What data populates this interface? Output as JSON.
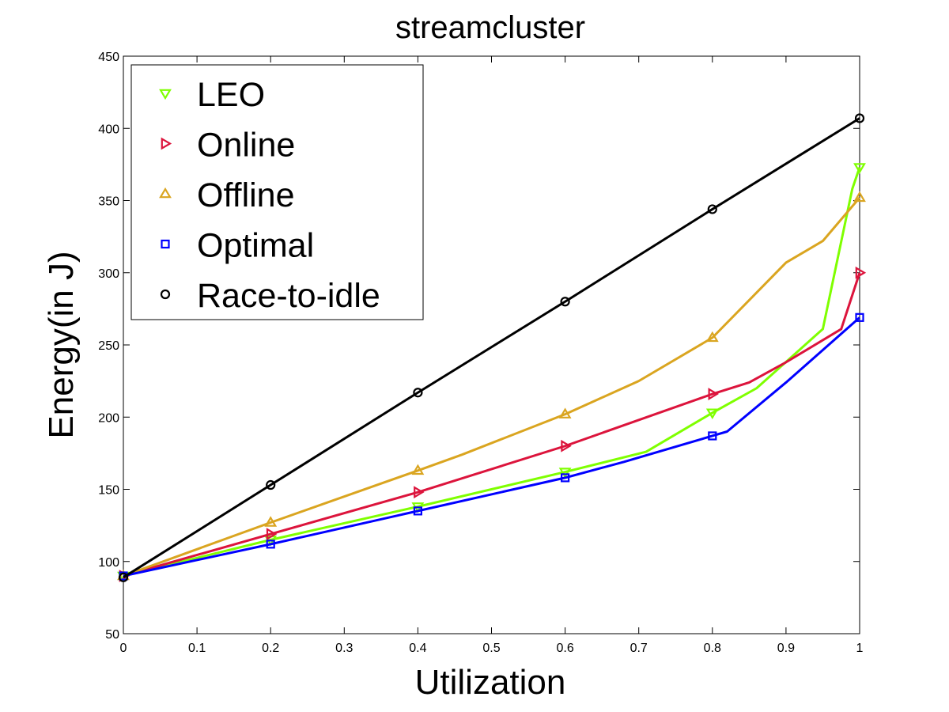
{
  "chart_data": {
    "type": "line",
    "title": "streamcluster",
    "xlabel": "Utilization",
    "ylabel": "Energy(in J)",
    "xlim": [
      0,
      1
    ],
    "ylim": [
      50,
      450
    ],
    "xticks": [
      0,
      0.1,
      0.2,
      0.3,
      0.4,
      0.5,
      0.6,
      0.7,
      0.8,
      0.9,
      1
    ],
    "yticks": [
      50,
      100,
      150,
      200,
      250,
      300,
      350,
      400,
      450
    ],
    "xtick_labels": [
      "0",
      "0.1",
      "0.2",
      "0.3",
      "0.4",
      "0.5",
      "0.6",
      "0.7",
      "0.8",
      "0.9",
      "1"
    ],
    "ytick_labels": [
      "50",
      "100",
      "150",
      "200",
      "250",
      "300",
      "350",
      "400",
      "450"
    ],
    "grid": false,
    "legend": "top-left",
    "series": [
      {
        "name": "LEO",
        "color": "#7fff00",
        "marker": "triangle-down",
        "marker_x": [
          0,
          0.2,
          0.4,
          0.6,
          0.8,
          1
        ],
        "marker_y": [
          90,
          115,
          138,
          162,
          203,
          373
        ],
        "x": [
          0,
          0.2,
          0.4,
          0.6,
          0.71,
          0.8,
          0.86,
          0.95,
          0.99,
          1
        ],
        "y": [
          90,
          115,
          138,
          162,
          176,
          203,
          220,
          261,
          358,
          373
        ]
      },
      {
        "name": "Online",
        "color": "#dc143c",
        "marker": "triangle-right",
        "marker_x": [
          0,
          0.2,
          0.4,
          0.6,
          0.8,
          1
        ],
        "marker_y": [
          90,
          119,
          148,
          180,
          216,
          300
        ],
        "x": [
          0,
          0.2,
          0.4,
          0.6,
          0.8,
          0.85,
          0.9,
          0.975,
          1
        ],
        "y": [
          90,
          119,
          148,
          180,
          216,
          224,
          238,
          261,
          300
        ]
      },
      {
        "name": "Offline",
        "color": "#daa520",
        "marker": "triangle-up",
        "marker_x": [
          0,
          0.2,
          0.4,
          0.6,
          0.8,
          1
        ],
        "marker_y": [
          90,
          127,
          163,
          202,
          255,
          352
        ],
        "x": [
          0,
          0.2,
          0.4,
          0.46,
          0.6,
          0.7,
          0.8,
          0.9,
          0.95,
          1
        ],
        "y": [
          90,
          127,
          163,
          174,
          202,
          225,
          255,
          307,
          322,
          352
        ]
      },
      {
        "name": "Optimal",
        "color": "#0000ff",
        "marker": "square",
        "marker_x": [
          0,
          0.2,
          0.4,
          0.6,
          0.8,
          1
        ],
        "marker_y": [
          90,
          112,
          135,
          158,
          187,
          269
        ],
        "x": [
          0,
          0.2,
          0.4,
          0.6,
          0.68,
          0.8,
          0.82,
          0.9,
          1
        ],
        "y": [
          90,
          112,
          135,
          158,
          169,
          187,
          190,
          224,
          269
        ]
      },
      {
        "name": "Race-to-idle",
        "color": "#000000",
        "marker": "circle",
        "marker_x": [
          0,
          0.2,
          0.4,
          0.6,
          0.8,
          1
        ],
        "marker_y": [
          89,
          153,
          217,
          280,
          344,
          407
        ],
        "x": [
          0,
          0.2,
          0.4,
          0.6,
          0.8,
          1
        ],
        "y": [
          89,
          153,
          217,
          280,
          344,
          407
        ]
      }
    ]
  }
}
